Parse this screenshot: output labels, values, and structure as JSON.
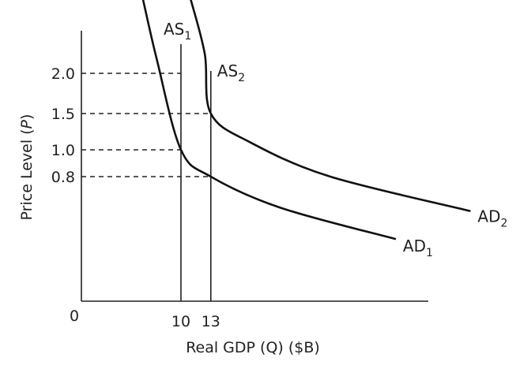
{
  "chart_data": {
    "type": "line",
    "xlabel": "Real GDP (Q) ($B)",
    "ylabel_main": "Price Level (",
    "ylabel_var": "P",
    "ylabel_close": ")",
    "origin_label": "0",
    "y_ticks": [
      {
        "value": 2.0,
        "label": "2.0"
      },
      {
        "value": 1.5,
        "label": "1.5"
      },
      {
        "value": 1.0,
        "label": "1.0"
      },
      {
        "value": 0.8,
        "label": "0.8"
      }
    ],
    "x_ticks": [
      {
        "value": 10,
        "label": "10"
      },
      {
        "value": 13,
        "label": "13"
      }
    ],
    "series": [
      {
        "name": "AS1",
        "label_main": "AS",
        "label_sub": "1",
        "kind": "vertical",
        "x": 10
      },
      {
        "name": "AS2",
        "label_main": "AS",
        "label_sub": "2",
        "kind": "vertical",
        "x": 13
      },
      {
        "name": "AD1",
        "label_main": "AD",
        "label_sub": "1",
        "kind": "curve",
        "points": [
          [
            6.2,
            3.15
          ],
          [
            7.6,
            2.2
          ],
          [
            10,
            1.0
          ],
          [
            13,
            0.8
          ],
          [
            20,
            0.6
          ],
          [
            31.5,
            0.4
          ]
        ]
      },
      {
        "name": "AD2",
        "label_main": "AD",
        "label_sub": "2",
        "kind": "curve",
        "points": [
          [
            11,
            3.15
          ],
          [
            12.4,
            2.3
          ],
          [
            13,
            1.5
          ],
          [
            17,
            1.1
          ],
          [
            25,
            0.8
          ],
          [
            39,
            0.58
          ]
        ]
      }
    ],
    "equilibria": [
      {
        "x": 10,
        "y": 2.0
      },
      {
        "x": 13,
        "y": 1.5
      },
      {
        "x": 10,
        "y": 1.0
      },
      {
        "x": 13,
        "y": 0.8
      }
    ],
    "grid": false
  }
}
